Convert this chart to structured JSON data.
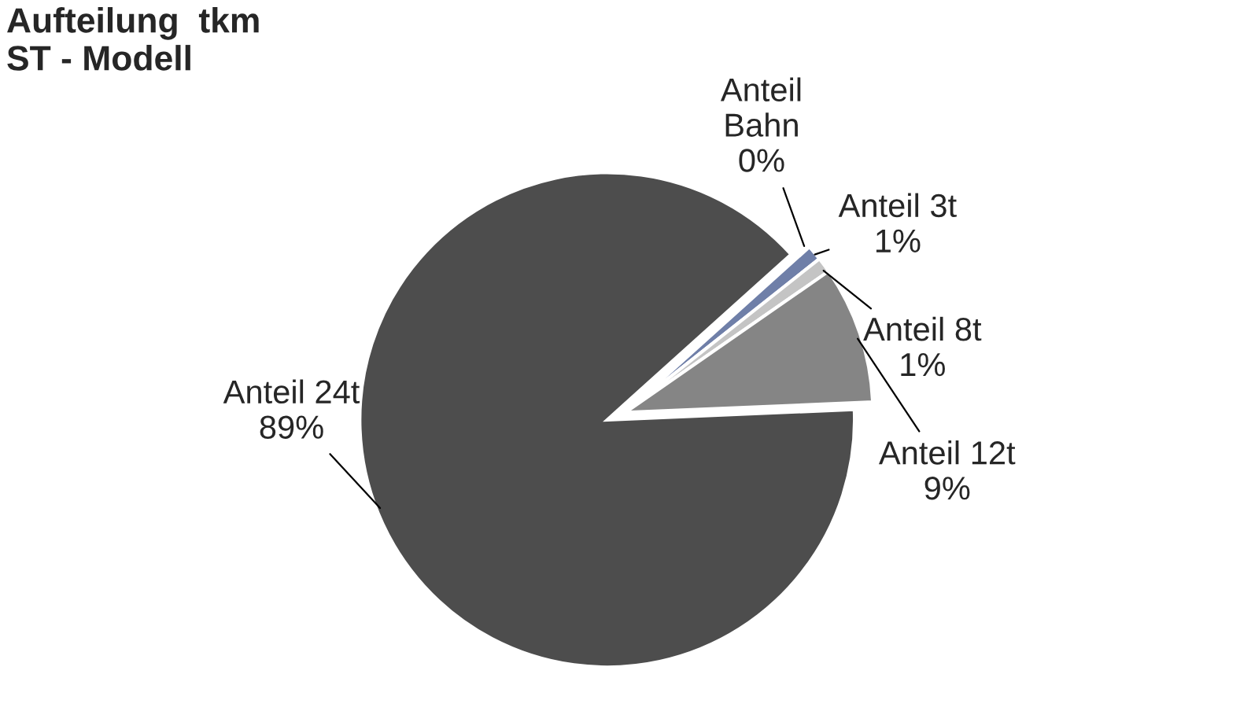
{
  "chart_data": {
    "type": "pie",
    "title": "Aufteilung  tkm\nST - Modell",
    "categories": [
      "Anteil\nBahn",
      "Anteil 3t",
      "Anteil 8t",
      "Anteil 12t",
      "Anteil 24t"
    ],
    "values": [
      0,
      1,
      1,
      9,
      89
    ],
    "colors": [
      "#2b3a8c",
      "#6f7fa8",
      "#c4c4c4",
      "#858585",
      "#4d4d4d"
    ],
    "value_labels": [
      "0%",
      "1%",
      "1%",
      "9%",
      "89%"
    ]
  }
}
